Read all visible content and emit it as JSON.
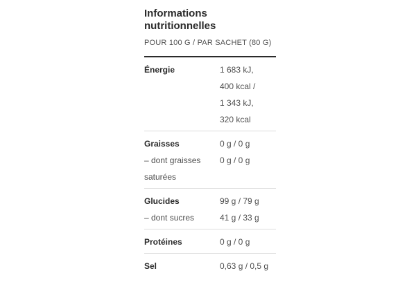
{
  "colors": {
    "background": "#ffffff",
    "text_dark": "#2b2b2b",
    "text_medium": "#4f4f4f",
    "divider_dark": "#2b2b2b",
    "divider_light": "#dcdcdc"
  },
  "table": {
    "title": "Informations nutritionnelles",
    "subtitle": "POUR 100 G / PAR SACHET (80 G)",
    "sections": [
      {
        "entries": [
          {
            "label": "Énergie",
            "bold": true,
            "values": [
              "1 683 kJ,",
              "400 kcal /",
              "1 343 kJ,",
              "320 kcal"
            ]
          }
        ]
      },
      {
        "entries": [
          {
            "label": "Graisses",
            "bold": true,
            "values": [
              "0 g / 0 g"
            ]
          },
          {
            "label": "– dont graisses saturées",
            "bold": false,
            "values": [
              "0 g / 0 g"
            ]
          }
        ]
      },
      {
        "entries": [
          {
            "label": "Glucides",
            "bold": true,
            "values": [
              "99 g / 79 g"
            ]
          },
          {
            "label": "– dont sucres",
            "bold": false,
            "values": [
              "41 g / 33 g"
            ]
          }
        ]
      },
      {
        "entries": [
          {
            "label": "Protéines",
            "bold": true,
            "values": [
              "0 g / 0 g"
            ]
          }
        ]
      },
      {
        "entries": [
          {
            "label": "Sel",
            "bold": true,
            "values": [
              "0,63 g / 0,5 g"
            ]
          }
        ]
      }
    ]
  }
}
